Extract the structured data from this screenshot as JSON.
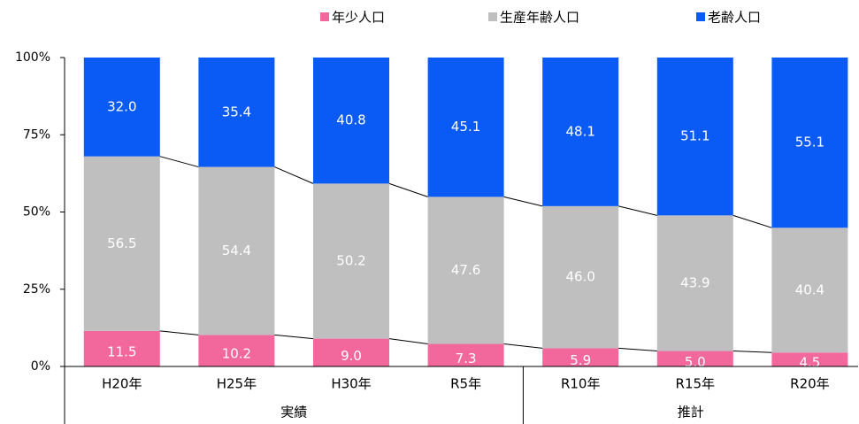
{
  "chart_data": {
    "type": "stacked_bar_percent",
    "categories": [
      "H20年",
      "H25年",
      "H30年",
      "R5年",
      "R10年",
      "R15年",
      "R20年"
    ],
    "groups": [
      {
        "label": "実績",
        "categories": [
          "H20年",
          "H25年",
          "H30年",
          "R5年"
        ]
      },
      {
        "label": "推計",
        "categories": [
          "R10年",
          "R15年",
          "R20年"
        ]
      }
    ],
    "series": [
      {
        "name": "年少人口",
        "color": "#f2689c",
        "values": [
          11.5,
          10.2,
          9.0,
          7.3,
          5.9,
          5.0,
          4.5
        ],
        "value_labels": [
          "11.5",
          "10.2",
          "9.0",
          "7.3",
          "5.9",
          "5.0",
          "4.5"
        ]
      },
      {
        "name": "生産年齢人口",
        "color": "#bfbfbf",
        "values": [
          56.5,
          54.4,
          50.2,
          47.6,
          46.0,
          43.9,
          40.4
        ],
        "value_labels": [
          "56.5",
          "54.4",
          "50.2",
          "47.6",
          "46.0",
          "43.9",
          "40.4"
        ]
      },
      {
        "name": "老齢人口",
        "color": "#0a5af5",
        "values": [
          32.0,
          35.4,
          40.8,
          45.1,
          48.1,
          51.1,
          55.1
        ],
        "value_labels": [
          "32.0",
          "35.4",
          "40.8",
          "45.1",
          "48.1",
          "51.1",
          "55.1"
        ]
      }
    ],
    "ylim": [
      0,
      100
    ],
    "yticks": [
      {
        "value": 0,
        "label": "0%"
      },
      {
        "value": 25,
        "label": "25%"
      },
      {
        "value": 50,
        "label": "50%"
      },
      {
        "value": 75,
        "label": "75%"
      },
      {
        "value": 100,
        "label": "100%"
      }
    ],
    "legend": "top"
  }
}
